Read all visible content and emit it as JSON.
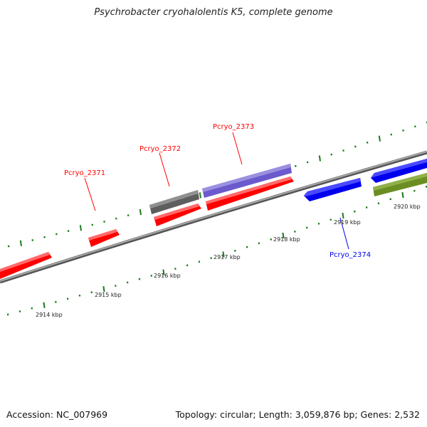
{
  "title": "Psychrobacter cryohalolentis K5, complete genome",
  "footer": {
    "accession": "Accession: NC_007969",
    "summary": "Topology: circular; Length: 3,059,876 bp; Genes: 2,532"
  },
  "ticks": [
    "2914 kbp",
    "2915 kbp",
    "2916 kbp",
    "2917 kbp",
    "2918 kbp",
    "2919 kbp",
    "2920 kbp"
  ],
  "genes": [
    {
      "label": "Pcryo_2371",
      "color": "#ff0000"
    },
    {
      "label": "Pcryo_2372",
      "color": "#ff0000"
    },
    {
      "label": "Pcryo_2373",
      "color": "#ff0000"
    },
    {
      "label": "Pcryo_2374",
      "color": "#0000ff"
    }
  ],
  "colors": {
    "forward": "#ff0000",
    "reverse": "#0000ee",
    "purple": "#6a5acd",
    "gray": "#606060",
    "olive": "#6b8e23",
    "tick": "#1a7a1a",
    "backbone": "#8a8a8a"
  }
}
